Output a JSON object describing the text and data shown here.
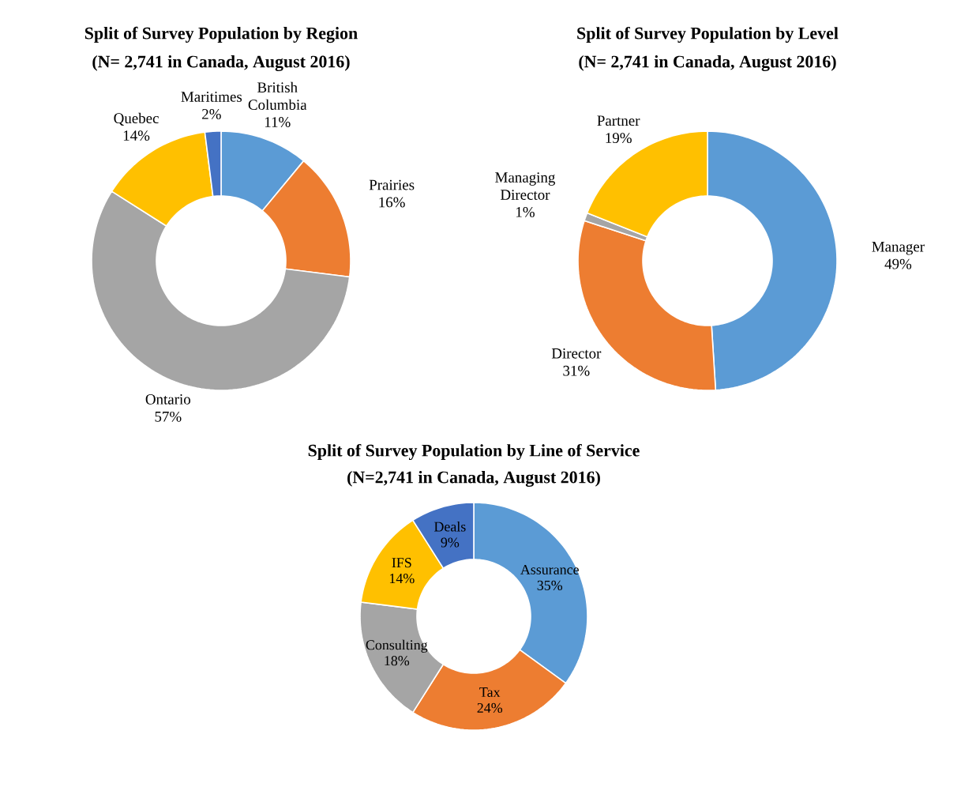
{
  "chart_data": [
    {
      "type": "donut",
      "title": "Split of Survey Population by Region",
      "subtitle": "(N= 2,741 in Canada, August 2016)",
      "categories": [
        "British Columbia",
        "Prairies",
        "Ontario",
        "Quebec",
        "Maritimes"
      ],
      "values": [
        11,
        16,
        57,
        14,
        2
      ],
      "value_labels": [
        "11%",
        "16%",
        "57%",
        "14%",
        "2%"
      ],
      "colors": [
        "#5b9bd5",
        "#ed7d31",
        "#a5a5a5",
        "#ffc000",
        "#4472c4"
      ]
    },
    {
      "type": "donut",
      "title": "Split of Survey Population by Level",
      "subtitle": "(N= 2,741 in Canada, August 2016)",
      "categories": [
        "Manager",
        "Director",
        "Managing Director",
        "Partner"
      ],
      "values": [
        49,
        31,
        1,
        19
      ],
      "value_labels": [
        "49%",
        "31%",
        "1%",
        "19%"
      ],
      "colors": [
        "#5b9bd5",
        "#ed7d31",
        "#a5a5a5",
        "#ffc000"
      ]
    },
    {
      "type": "donut",
      "title": "Split of Survey Population by Line of Service",
      "subtitle": "(N=2,741 in Canada, August 2016)",
      "categories": [
        "Assurance",
        "Tax",
        "Consulting",
        "IFS",
        "Deals"
      ],
      "values": [
        35,
        24,
        18,
        14,
        9
      ],
      "value_labels": [
        "35%",
        "24%",
        "18%",
        "14%",
        "9%"
      ],
      "colors": [
        "#5b9bd5",
        "#ed7d31",
        "#a5a5a5",
        "#ffc000",
        "#4472c4"
      ]
    }
  ]
}
